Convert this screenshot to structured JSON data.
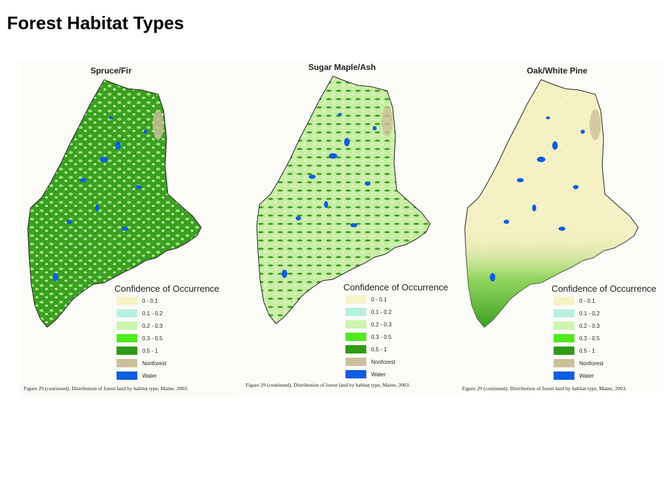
{
  "title": "Forest Habitat Types",
  "maps": [
    {
      "title": "Spruce/Fir",
      "legend_title": "Confidence of Occurrence",
      "legend": [
        {
          "label": "0 - 0.1",
          "color": "#f7f2c4"
        },
        {
          "label": "0.1 - 0.2",
          "color": "#b8f0e0"
        },
        {
          "label": "0.2 - 0.3",
          "color": "#ccf5b0"
        },
        {
          "label": "0.3 - 0.5",
          "color": "#4fea1e"
        },
        {
          "label": "0.5 - 1",
          "color": "#2f9a14"
        },
        {
          "label": "Nonforest",
          "color": "#cdbf9c"
        },
        {
          "label": "Water",
          "color": "#0d5ee0"
        }
      ],
      "caption": "Figure 29 (continued).  Distribution of forest land by habitat type, Maine, 2003."
    },
    {
      "title": "Sugar Maple/Ash",
      "legend_title": "Confidence of Occurrence",
      "legend": [
        {
          "label": "0 - 0.1",
          "color": "#f7f2c4"
        },
        {
          "label": "0.1 - 0.2",
          "color": "#b8f0e0"
        },
        {
          "label": "0.2 - 0.3",
          "color": "#ccf5b0"
        },
        {
          "label": "0.3 - 0.5",
          "color": "#4fea1e"
        },
        {
          "label": "0.5 - 1",
          "color": "#2f9a14"
        },
        {
          "label": "Nonforest",
          "color": "#cdbf9c"
        },
        {
          "label": "Water",
          "color": "#0d5ee0"
        }
      ],
      "caption": "Figure 29 (continued).  Distribution of forest land by habitat type, Maine, 2003."
    },
    {
      "title": "Oak/White Pine",
      "legend_title": "Confidence of Occurrence",
      "legend": [
        {
          "label": "0 - 0.1",
          "color": "#f7f2c4"
        },
        {
          "label": "0.1 - 0.2",
          "color": "#b8f0e0"
        },
        {
          "label": "0.2 - 0.3",
          "color": "#ccf5b0"
        },
        {
          "label": "0.3 - 0.5",
          "color": "#4fea1e"
        },
        {
          "label": "0.5 - 1",
          "color": "#2f9a14"
        },
        {
          "label": "Nonforest",
          "color": "#cdbf9c"
        },
        {
          "label": "Water",
          "color": "#0d5ee0"
        }
      ],
      "caption": "Figure 29 (continued).  Distribution of forest land by habitat type, Maine, 2003."
    }
  ]
}
